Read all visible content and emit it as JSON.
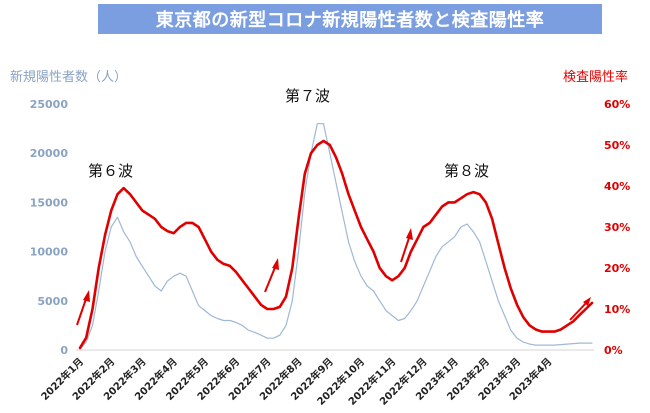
{
  "title": "東京都の新型コロナ新規陽性者数と検査陽性率",
  "chart_data": {
    "type": "line",
    "left_axis_label": "新規陽性者数（人）",
    "right_axis_label": "検査陽性率",
    "left_ticks": [
      "0",
      "5000",
      "10000",
      "15000",
      "20000",
      "25000"
    ],
    "right_ticks": [
      "0%",
      "10%",
      "20%",
      "30%",
      "40%",
      "50%",
      "60%"
    ],
    "y_left_range": [
      0,
      25000
    ],
    "y_right_range": [
      0,
      60
    ],
    "x_range": [
      0,
      16.4
    ],
    "x_tick_labels": [
      "2022年1月",
      "2022年2月",
      "2022年3月",
      "2022年4月",
      "2022年5月",
      "2022年6月",
      "2022年7月",
      "2022年8月",
      "2022年9月",
      "2022年10月",
      "2022年11月",
      "2022年12月",
      "2023年1月",
      "2023年2月",
      "2023年3月",
      "2023年4月"
    ],
    "annotations": [
      "第６波",
      "第７波",
      "第８波"
    ],
    "series": [
      {
        "color": "#e00000",
        "axis": "right",
        "x": [
          0,
          0.2,
          0.4,
          0.6,
          0.8,
          1.0,
          1.2,
          1.4,
          1.6,
          1.8,
          2.0,
          2.2,
          2.4,
          2.6,
          2.8,
          3.0,
          3.2,
          3.4,
          3.6,
          3.8,
          4.0,
          4.2,
          4.4,
          4.6,
          4.8,
          5.0,
          5.2,
          5.4,
          5.6,
          5.8,
          6.0,
          6.2,
          6.4,
          6.6,
          6.8,
          7.0,
          7.2,
          7.4,
          7.6,
          7.8,
          8.0,
          8.2,
          8.4,
          8.6,
          8.8,
          9.0,
          9.2,
          9.4,
          9.6,
          9.8,
          10.0,
          10.2,
          10.4,
          10.6,
          10.8,
          11.0,
          11.2,
          11.4,
          11.6,
          11.8,
          12.0,
          12.2,
          12.4,
          12.6,
          12.8,
          13.0,
          13.2,
          13.4,
          13.6,
          13.8,
          14.0,
          14.2,
          14.4,
          14.6,
          14.8,
          15.0,
          15.2,
          15.4,
          15.6,
          15.8,
          16.0,
          16.2,
          16.4
        ],
        "y": [
          0.5,
          3,
          10,
          20,
          28,
          34,
          38,
          39.5,
          38,
          36,
          34,
          33,
          32,
          30,
          29,
          28.5,
          30,
          31,
          31,
          30,
          27,
          24,
          22,
          21,
          20.5,
          19,
          17,
          15,
          13,
          11,
          10,
          10,
          10.5,
          13,
          20,
          32,
          43,
          48,
          50,
          51,
          50,
          47,
          43,
          38,
          34,
          30,
          27,
          24,
          20,
          18,
          17,
          18,
          20,
          24,
          27,
          30,
          31,
          33,
          35,
          36,
          36,
          37,
          38,
          38.5,
          38,
          36,
          32,
          26,
          20,
          15,
          11,
          8,
          6,
          5,
          4.5,
          4.5,
          4.5,
          5,
          6,
          7,
          8.5,
          10,
          11.5
        ]
      },
      {
        "color": "#9fb8d4",
        "axis": "left",
        "x": [
          0,
          0.2,
          0.4,
          0.6,
          0.8,
          1.0,
          1.2,
          1.4,
          1.6,
          1.8,
          2.0,
          2.2,
          2.4,
          2.6,
          2.8,
          3.0,
          3.2,
          3.4,
          3.6,
          3.8,
          4.0,
          4.2,
          4.4,
          4.6,
          4.8,
          5.0,
          5.2,
          5.4,
          5.6,
          5.8,
          6.0,
          6.2,
          6.4,
          6.6,
          6.8,
          7.0,
          7.2,
          7.4,
          7.6,
          7.8,
          8.0,
          8.2,
          8.4,
          8.6,
          8.8,
          9.0,
          9.2,
          9.4,
          9.6,
          9.8,
          10.0,
          10.2,
          10.4,
          10.6,
          10.8,
          11.0,
          11.2,
          11.4,
          11.6,
          11.8,
          12.0,
          12.2,
          12.4,
          12.6,
          12.8,
          13.0,
          13.2,
          13.4,
          13.6,
          13.8,
          14.0,
          14.2,
          14.4,
          14.6,
          14.8,
          15.0,
          15.2,
          15.4,
          15.6,
          15.8,
          16.0,
          16.2,
          16.4
        ],
        "y": [
          100,
          800,
          2500,
          6000,
          10000,
          12500,
          13500,
          12000,
          11000,
          9500,
          8500,
          7500,
          6500,
          6000,
          7000,
          7500,
          7800,
          7500,
          6000,
          4500,
          4000,
          3500,
          3200,
          3000,
          3000,
          2800,
          2500,
          2000,
          1800,
          1500,
          1200,
          1200,
          1500,
          2500,
          5000,
          10000,
          16000,
          20000,
          23000,
          23000,
          20000,
          17000,
          14000,
          11000,
          9000,
          7500,
          6500,
          6000,
          5000,
          4000,
          3500,
          3000,
          3200,
          4000,
          5000,
          6500,
          8000,
          9500,
          10500,
          11000,
          11500,
          12500,
          12800,
          12000,
          11000,
          9000,
          7000,
          5000,
          3500,
          2000,
          1200,
          800,
          600,
          500,
          500,
          500,
          500,
          550,
          600,
          650,
          700,
          700,
          700
        ]
      }
    ]
  }
}
